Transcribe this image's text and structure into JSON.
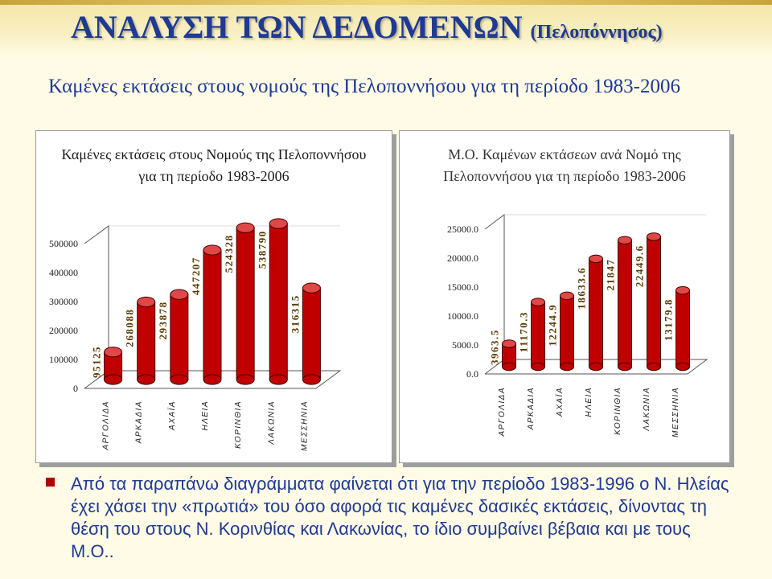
{
  "slide": {
    "title": "ΑΝΑΛΥΣΗ ΤΩΝ ΔΕΔΟΜΕΝΩΝ",
    "title_sub": "(Πελοπόννησος)",
    "heading": "Καμένες εκτάσεις στους νομούς της Πελοποννήσου για τη περίοδο 1983-2006",
    "bullet": "Από τα παραπάνω διαγράμματα φαίνεται ότι για την περίοδο 1983-1996 ο Ν. Ηλείας έχει χάσει την «πρωτιά» του όσο αφορά τις καμένες δασικές εκτάσεις, δίνοντας τη θέση του στους Ν. Κορινθίας και Λακωνίας, το ίδιο συμβαίνει βέβαια και με τους Μ.Ο..",
    "colors": {
      "title": "#1f3a93",
      "bar": "#c00000",
      "bar_top": "#e04848",
      "bullet": "#b00000"
    }
  },
  "chart_data": [
    {
      "type": "bar",
      "title_lines": [
        "Καμένες εκτάσεις στους Νομούς της Πελοποννήσου",
        "για τη περίοδο 1983-2006"
      ],
      "categories": [
        "ΑΡΓΟΛΙΔΑ",
        "ΑΡΚΑΔΙΑ",
        "ΑΧΑΪΑ",
        "ΗΛΕΙΑ",
        "ΚΟΡΙΝΘΙΑ",
        "ΛΑΚΩΝΙΑ",
        "ΜΕΣΣΗΝΙΑ"
      ],
      "values": [
        95125,
        268088,
        293878,
        447207,
        524328,
        538790,
        316315
      ],
      "value_labels": [
        "95125",
        "268088",
        "293878",
        "447207",
        "524328",
        "538790",
        "316315"
      ],
      "ylim": [
        0,
        500000
      ],
      "ticks": [
        0,
        100000,
        200000,
        300000,
        400000,
        500000
      ],
      "tick_labels": [
        "0",
        "100000",
        "200000",
        "300000",
        "400000",
        "500000"
      ],
      "grid": false,
      "style": "3d-cylinder"
    },
    {
      "type": "bar",
      "title_lines": [
        "Μ.Ο. Καμένων εκτάσεων ανά Νομό της",
        "Πελοποννήσου για τη περίοδο 1983-2006"
      ],
      "categories": [
        "ΑΡΓΟΛΙΔΑ",
        "ΑΡΚΑΔΙΑ",
        "ΑΧΑΪΑ",
        "ΗΛΕΙΑ",
        "ΚΟΡΙΝΘΙΑ",
        "ΛΑΚΩΝΙΑ",
        "ΜΕΣΣΗΝΙΑ"
      ],
      "values": [
        3963.5,
        11170.3,
        12244.9,
        18633.6,
        21847,
        22449.6,
        13179.8
      ],
      "value_labels": [
        "3963.5",
        "11170.3",
        "12244.9",
        "18633.6",
        "21847",
        "22449.6",
        "13179.8"
      ],
      "ylim": [
        0,
        25000
      ],
      "ticks": [
        0,
        5000,
        10000,
        15000,
        20000,
        25000
      ],
      "tick_labels": [
        "0.0",
        "5000.0",
        "10000.0",
        "15000.0",
        "20000.0",
        "25000.0"
      ],
      "grid": false,
      "style": "3d-cylinder"
    }
  ]
}
